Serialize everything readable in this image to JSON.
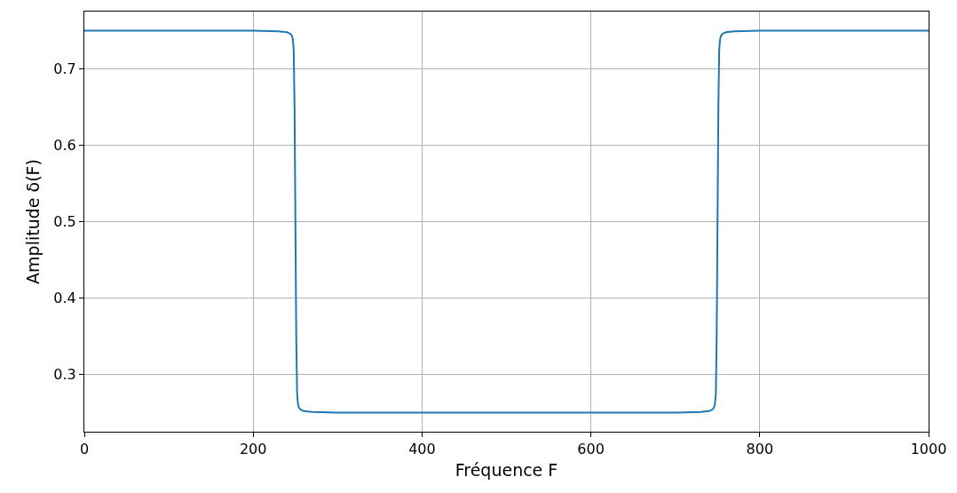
{
  "chart_data": {
    "type": "line",
    "xlabel": "Fréquence F",
    "ylabel": "Amplitude δ(F)",
    "series": [
      {
        "color": "#1f77b4",
        "x": [
          0,
          100,
          200,
          230,
          240,
          244,
          246,
          247,
          248,
          249,
          250,
          251,
          252,
          253,
          254,
          256,
          260,
          270,
          300,
          400,
          500,
          600,
          700,
          730,
          740,
          744,
          746,
          747,
          748,
          749,
          750,
          751,
          752,
          753,
          754,
          756,
          760,
          770,
          800,
          900,
          1000
        ],
        "values": [
          0.75,
          0.75,
          0.75,
          0.749,
          0.748,
          0.746,
          0.743,
          0.738,
          0.725,
          0.65,
          0.5,
          0.35,
          0.275,
          0.262,
          0.257,
          0.254,
          0.252,
          0.251,
          0.25,
          0.25,
          0.25,
          0.25,
          0.25,
          0.251,
          0.252,
          0.254,
          0.257,
          0.262,
          0.275,
          0.35,
          0.5,
          0.65,
          0.725,
          0.738,
          0.743,
          0.746,
          0.748,
          0.749,
          0.75,
          0.75,
          0.75
        ]
      }
    ],
    "xlim": [
      0,
      1000
    ],
    "xticks": [
      0,
      200,
      400,
      600,
      800,
      1000
    ],
    "ylim": [
      0.225,
      0.775
    ],
    "yticks": [
      0.3,
      0.4,
      0.5,
      0.6,
      0.7
    ],
    "grid": true,
    "line_style": "solid",
    "marker": "none"
  }
}
